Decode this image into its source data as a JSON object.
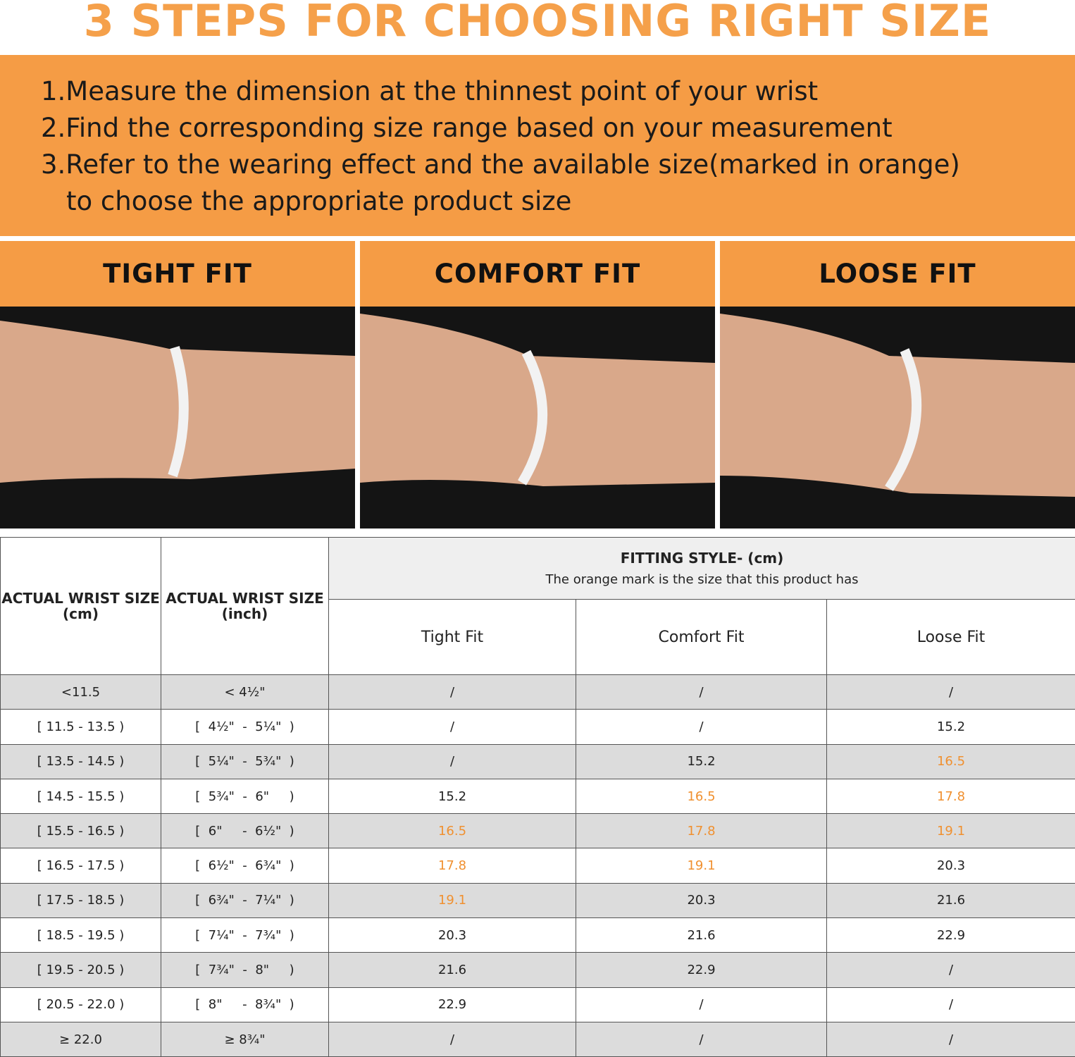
{
  "title": "3 STEPS FOR CHOOSING RIGHT SIZE",
  "steps": [
    "1.Measure the dimension at the thinnest point of your wrist",
    "2.Find the corresponding size range based on your measurement",
    "3.Refer to the wearing effect and the available size(marked in orange)",
    "to choose the appropriate product size"
  ],
  "fits": [
    "TIGHT FIT",
    "COMFORT FIT",
    "LOOSE FIT"
  ],
  "colors": {
    "accent": "#F59C45",
    "highlight_text": "#F0902F",
    "title": "#F5A04A"
  },
  "table": {
    "col_cm": "ACTUAL WRIST SIZE",
    "col_cm_unit": "(cm)",
    "col_inch": "ACTUAL WRIST SIZE",
    "col_inch_unit": "(inch)",
    "fitting_title": "FITTING STYLE- (cm)",
    "fitting_note": "The orange mark is the size that this product has",
    "sub_headers": [
      "Tight Fit",
      "Comfort Fit",
      "Loose Fit"
    ],
    "rows": [
      {
        "cm": "<11.5",
        "inch": "< 4½\"",
        "values": [
          "/",
          "/",
          "/"
        ],
        "highlight": [
          false,
          false,
          false
        ]
      },
      {
        "cm": "[ 11.5 - 13.5 )",
        "inch": "[  4½\"  -  5¼\"  )",
        "values": [
          "/",
          "/",
          "15.2"
        ],
        "highlight": [
          false,
          false,
          false
        ]
      },
      {
        "cm": "[ 13.5 - 14.5 )",
        "inch": "[  5¼\"  -  5¾\"  )",
        "values": [
          "/",
          "15.2",
          "16.5"
        ],
        "highlight": [
          false,
          false,
          true
        ]
      },
      {
        "cm": "[ 14.5 - 15.5 )",
        "inch": "[  5¾\"  -  6\"     )",
        "values": [
          "15.2",
          "16.5",
          "17.8"
        ],
        "highlight": [
          false,
          true,
          true
        ]
      },
      {
        "cm": "[ 15.5 - 16.5 )",
        "inch": "[  6\"     -  6½\"  )",
        "values": [
          "16.5",
          "17.8",
          "19.1"
        ],
        "highlight": [
          true,
          true,
          true
        ]
      },
      {
        "cm": "[ 16.5 - 17.5 )",
        "inch": "[  6½\"  -  6¾\"  )",
        "values": [
          "17.8",
          "19.1",
          "20.3"
        ],
        "highlight": [
          true,
          true,
          false
        ]
      },
      {
        "cm": "[ 17.5 - 18.5 )",
        "inch": "[  6¾\"  -  7¼\"  )",
        "values": [
          "19.1",
          "20.3",
          "21.6"
        ],
        "highlight": [
          true,
          false,
          false
        ]
      },
      {
        "cm": "[ 18.5 - 19.5 )",
        "inch": "[  7¼\"  -  7¾\"  )",
        "values": [
          "20.3",
          "21.6",
          "22.9"
        ],
        "highlight": [
          false,
          false,
          false
        ]
      },
      {
        "cm": "[ 19.5 - 20.5 )",
        "inch": "[  7¾\"  -  8\"     )",
        "values": [
          "21.6",
          "22.9",
          "/"
        ],
        "highlight": [
          false,
          false,
          false
        ]
      },
      {
        "cm": "[ 20.5 - 22.0 )",
        "inch": "[  8\"     -  8¾\"  )",
        "values": [
          "22.9",
          "/",
          "/"
        ],
        "highlight": [
          false,
          false,
          false
        ]
      },
      {
        "cm": "≥ 22.0",
        "inch": "≥ 8¾\"",
        "values": [
          "/",
          "/",
          "/"
        ],
        "highlight": [
          false,
          false,
          false
        ]
      }
    ]
  }
}
